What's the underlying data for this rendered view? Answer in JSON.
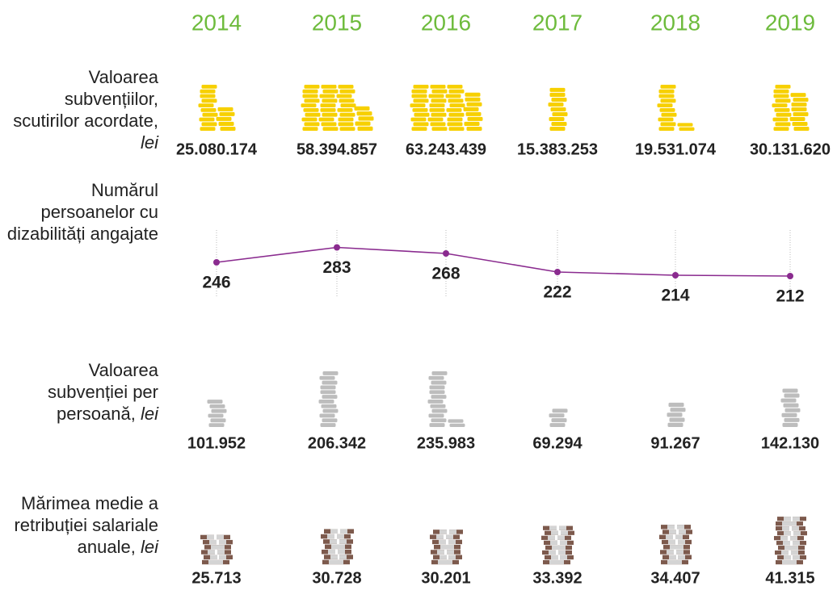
{
  "chart_data": {
    "type": "pictogram",
    "categories": [
      "2014",
      "2015",
      "2016",
      "2017",
      "2018",
      "2019"
    ],
    "series": [
      {
        "name": "Valoarea subvențiilor, scutirilor acordate,",
        "unit": "lei",
        "type": "pictogram",
        "color": "#f7d000",
        "values": [
          25080174,
          58394857,
          63243439,
          15383253,
          19531074,
          30131620
        ],
        "value_labels": [
          "25.080.174",
          "58.394.857",
          "63.243.439",
          "15.383.253",
          "19.531.074",
          "30.131.620"
        ]
      },
      {
        "name": "Numărul persoanelor cu dizabilități angajate",
        "type": "line",
        "color": "#8a2b8f",
        "values": [
          246,
          283,
          268,
          222,
          214,
          212
        ]
      },
      {
        "name": "Valoarea subvenției per persoană,",
        "unit": "lei",
        "type": "pictogram",
        "color": "#bdbdbd",
        "values": [
          101952,
          206342,
          235983,
          69294,
          91267,
          142130
        ],
        "value_labels": [
          "101.952",
          "206.342",
          "235.983",
          "69.294",
          "91.267",
          "142.130"
        ]
      },
      {
        "name": "Mărimea medie a retribuției salariale anuale,",
        "unit": "lei",
        "type": "banknotes",
        "color": "#7d5a4d",
        "values": [
          25713,
          30728,
          30201,
          33392,
          34407,
          41315
        ],
        "value_labels": [
          "25.713",
          "30.728",
          "30.201",
          "33.392",
          "34.407",
          "41.315"
        ]
      }
    ]
  }
}
